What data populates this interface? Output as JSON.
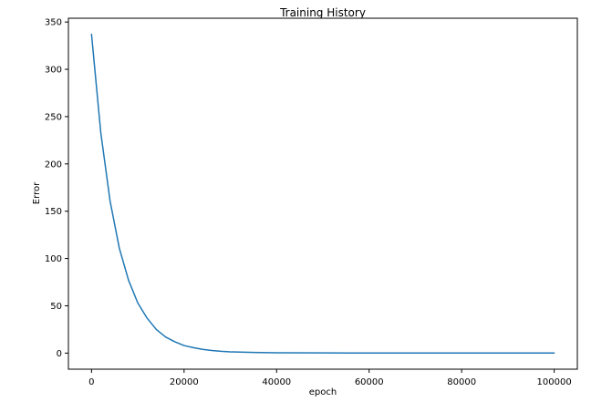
{
  "chart_data": {
    "type": "line",
    "title": "Training History",
    "xlabel": "epoch",
    "ylabel": "Error",
    "xlim": [
      -5000,
      105000
    ],
    "ylim": [
      -17,
      354
    ],
    "x_ticks": [
      0,
      20000,
      40000,
      60000,
      80000,
      100000
    ],
    "x_tick_labels": [
      "0",
      "20000",
      "40000",
      "60000",
      "80000",
      "100000"
    ],
    "y_ticks": [
      0,
      50,
      100,
      150,
      200,
      250,
      300,
      350
    ],
    "y_tick_labels": [
      "0",
      "50",
      "100",
      "150",
      "200",
      "250",
      "300",
      "350"
    ],
    "grid": false,
    "legend": "none",
    "series": [
      {
        "color": "#1f77b4",
        "x": [
          0,
          2000,
          4000,
          6000,
          8000,
          10000,
          12000,
          14000,
          16000,
          18000,
          20000,
          22000,
          24000,
          26000,
          28000,
          30000,
          35000,
          40000,
          50000,
          60000,
          70000,
          80000,
          90000,
          100000
        ],
        "y": [
          337,
          233,
          161,
          111,
          77,
          53,
          37,
          25,
          17,
          12,
          8,
          5.8,
          4.0,
          2.8,
          1.9,
          1.3,
          0.7,
          0.4,
          0.2,
          0.1,
          0.1,
          0.1,
          0.1,
          0.1
        ]
      }
    ]
  }
}
